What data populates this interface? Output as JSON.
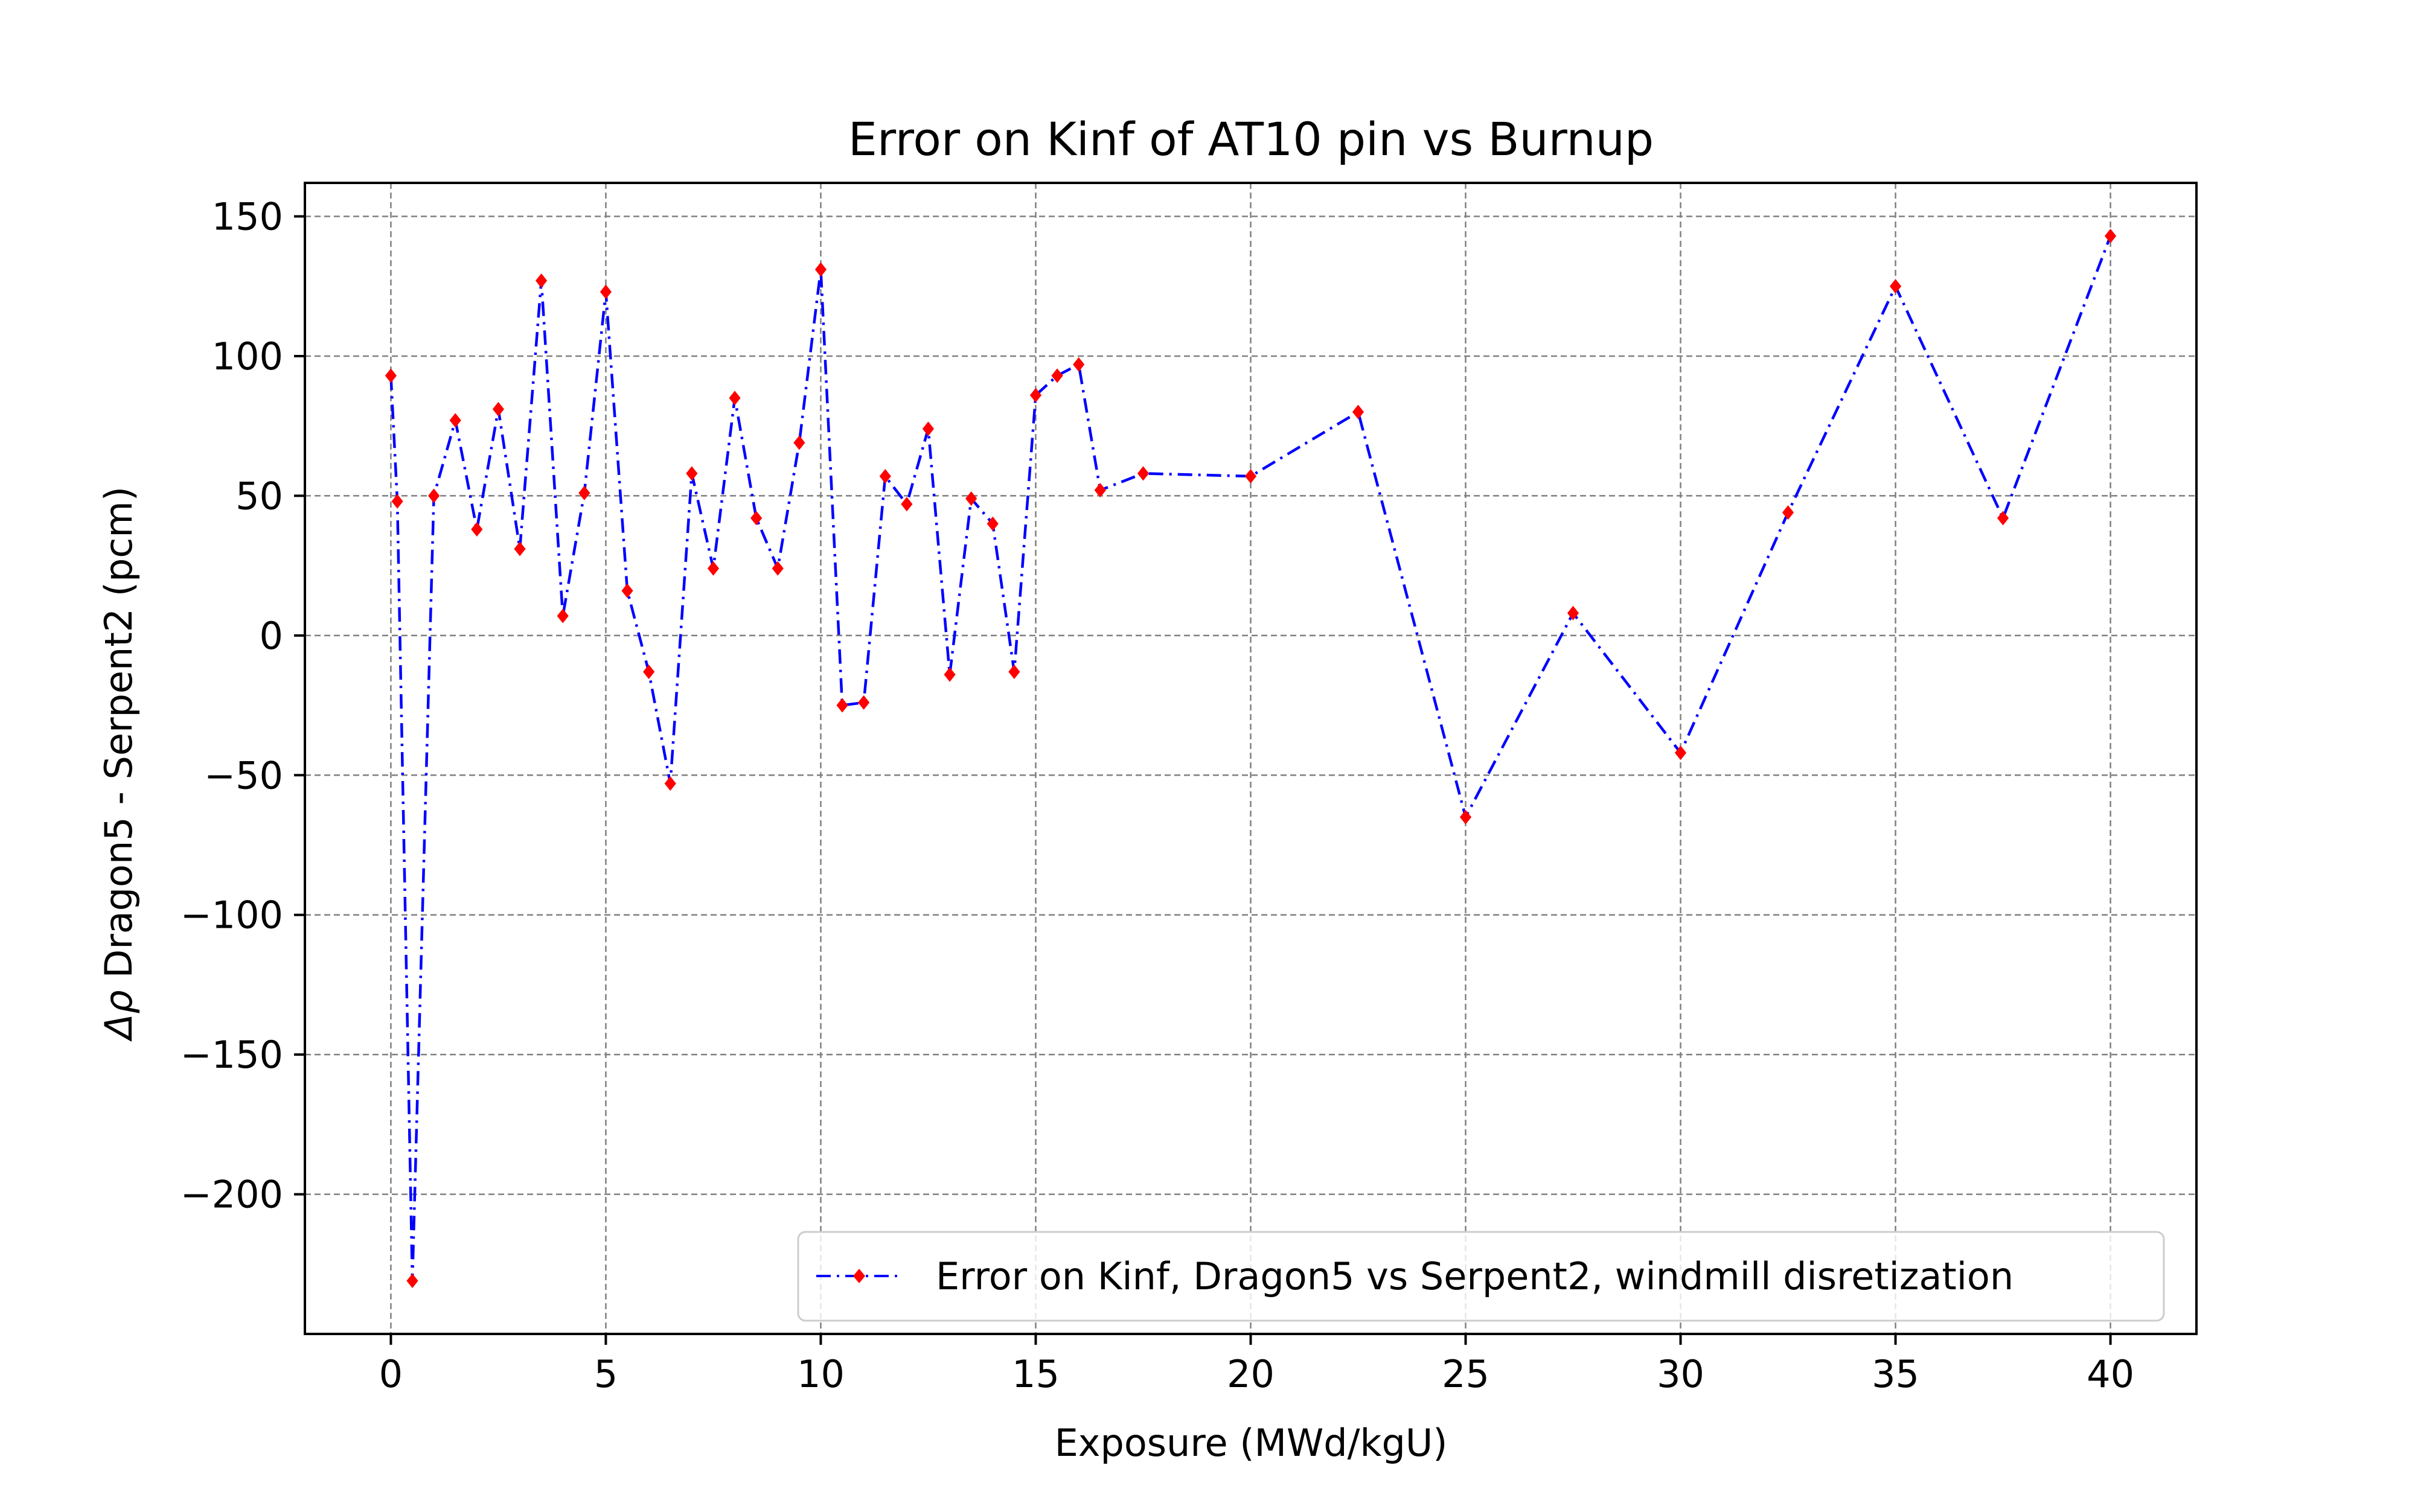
{
  "chart_data": {
    "type": "line",
    "title": "Error on Kinf of AT10 pin vs Burnup",
    "xlabel": "Exposure (MWd/kgU)",
    "ylabel_prefix": "Δρ",
    "ylabel": "Dragon5 - Serpent2 (pcm)",
    "xlim": [
      -2,
      42
    ],
    "ylim": [
      -250,
      162
    ],
    "xticks": [
      0,
      5,
      10,
      15,
      20,
      25,
      30,
      35,
      40
    ],
    "yticks": [
      150,
      100,
      50,
      0,
      -50,
      -100,
      -150,
      -200
    ],
    "xtick_labels": [
      "0",
      "5",
      "10",
      "15",
      "20",
      "25",
      "30",
      "35",
      "40"
    ],
    "ytick_labels": [
      "150",
      "100",
      "50",
      "0",
      "−50",
      "−100",
      "−150",
      "−200"
    ],
    "grid": true,
    "legend_position": "lower right",
    "series": [
      {
        "name": "Error on Kinf, Dragon5 vs Serpent2, windmill disretization",
        "line_color": "#0000ff",
        "marker_color": "#ff0000",
        "line_style": "dash-dot",
        "marker": "diamond",
        "x": [
          0,
          0.15,
          0.5,
          1,
          1.5,
          2,
          2.5,
          3,
          3.5,
          4,
          4.5,
          5,
          5.5,
          6,
          6.5,
          7,
          7.5,
          8,
          8.5,
          9,
          9.5,
          10,
          10.5,
          11,
          11.5,
          12,
          12.5,
          13,
          13.5,
          14,
          14.5,
          15,
          15.5,
          16,
          16.5,
          17.5,
          20,
          22.5,
          25,
          27.5,
          30,
          32.5,
          35,
          37.5,
          40
        ],
        "y": [
          93,
          48,
          -231,
          50,
          77,
          38,
          81,
          31,
          127,
          7,
          51,
          123,
          16,
          -13,
          -53,
          58,
          24,
          85,
          42,
          24,
          69,
          131,
          -25,
          -24,
          57,
          47,
          74,
          -14,
          49,
          40,
          -13,
          86,
          93,
          97,
          52,
          58,
          57,
          80,
          -65,
          8,
          -42,
          44,
          125,
          42,
          143
        ]
      }
    ]
  }
}
